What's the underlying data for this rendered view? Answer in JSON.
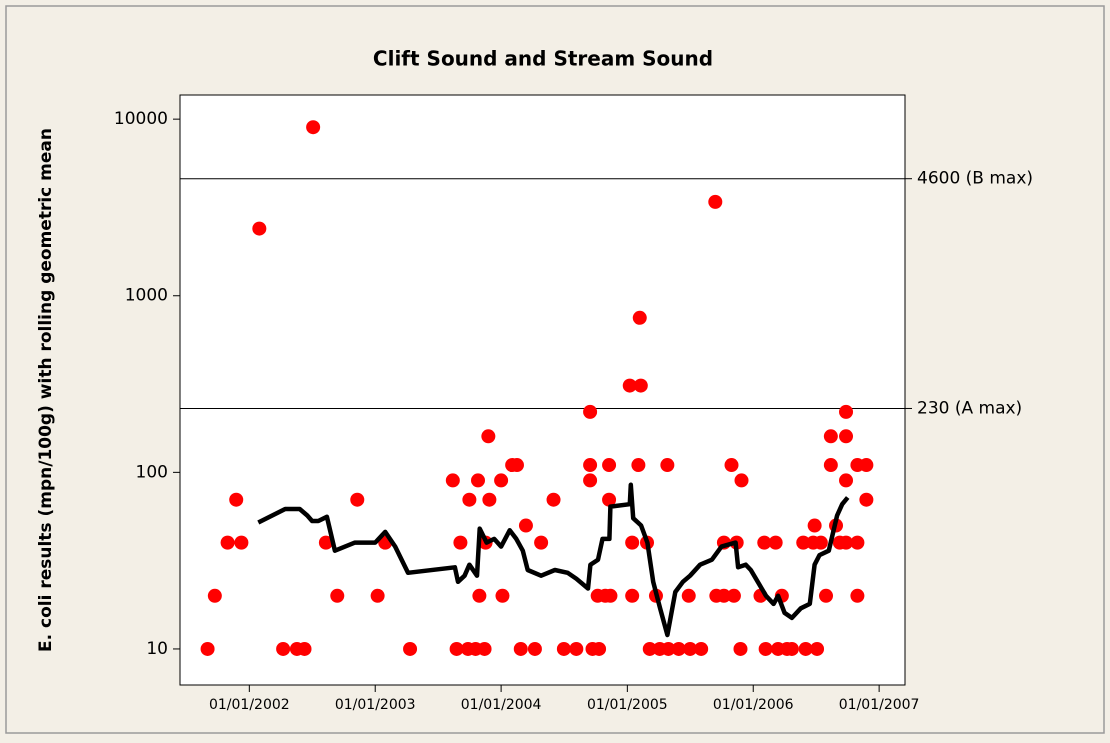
{
  "chart_data": {
    "type": "scatter",
    "title": "Clift Sound and Stream Sound",
    "ylabel": "E. coli results (mpn/100g) with rolling geometric mean",
    "log_scale": true,
    "ylim": [
      6.25,
      13700
    ],
    "yticks": [
      10,
      100,
      1000,
      10000
    ],
    "xlim": [
      "2001-06-14",
      "2007-03-17"
    ],
    "xticks": [
      {
        "value": "2002-01-01",
        "label": "01/01/2002"
      },
      {
        "value": "2003-01-01",
        "label": "01/01/2003"
      },
      {
        "value": "2004-01-01",
        "label": "01/01/2004"
      },
      {
        "value": "2005-01-01",
        "label": "01/01/2005"
      },
      {
        "value": "2006-01-01",
        "label": "01/01/2006"
      },
      {
        "value": "2007-01-01",
        "label": "01/01/2007"
      }
    ],
    "reference_lines": [
      {
        "value": 4600,
        "label": "4600 (B max)"
      },
      {
        "value": 230,
        "label": "230 (A max)"
      }
    ],
    "series": [
      {
        "type": "scatter",
        "color": "#ff0000",
        "x": [
          "2001-09-02",
          "2001-09-23",
          "2001-10-30",
          "2001-11-24",
          "2001-12-09",
          "2002-01-30",
          "2002-04-09",
          "2002-05-19",
          "2002-06-10",
          "2002-07-05",
          "2002-08-11",
          "2002-09-13",
          "2002-11-10",
          "2003-01-08",
          "2003-01-30",
          "2003-04-12",
          "2003-08-14",
          "2003-08-25",
          "2003-09-05",
          "2003-09-27",
          "2003-10-01",
          "2003-10-19",
          "2003-10-26",
          "2003-10-30",
          "2003-11-14",
          "2003-11-17",
          "2003-11-25",
          "2003-11-28",
          "2004-01-01",
          "2004-01-05",
          "2004-02-02",
          "2004-02-16",
          "2004-02-27",
          "2004-03-13",
          "2004-04-08",
          "2004-04-26",
          "2004-06-01",
          "2004-07-01",
          "2004-08-06",
          "2004-09-15",
          "2004-09-15",
          "2004-09-15",
          "2004-09-22",
          "2004-10-07",
          "2004-10-11",
          "2004-10-29",
          "2004-11-09",
          "2004-11-09",
          "2004-11-13",
          "2005-01-08",
          "2005-01-15",
          "2005-01-15",
          "2005-02-06",
          "2005-02-09",
          "2005-02-02",
          "2005-02-27",
          "2005-03-07",
          "2005-03-25",
          "2005-04-05",
          "2005-04-27",
          "2005-04-30",
          "2005-05-30",
          "2005-07-02",
          "2005-06-28",
          "2005-08-03",
          "2005-09-13",
          "2005-09-16",
          "2005-10-08",
          "2005-10-08",
          "2005-10-30",
          "2005-11-06",
          "2005-11-14",
          "2005-11-28",
          "2005-11-25",
          "2006-01-22",
          "2006-02-02",
          "2006-02-06",
          "2006-03-07",
          "2006-03-14",
          "2006-03-25",
          "2006-04-09",
          "2006-04-23",
          "2006-05-26",
          "2006-06-02",
          "2006-07-05",
          "2006-06-24",
          "2006-06-28",
          "2006-07-16",
          "2006-07-31",
          "2006-08-14",
          "2006-08-14",
          "2006-08-29",
          "2006-09-09",
          "2006-09-27",
          "2006-09-27",
          "2006-09-27",
          "2006-09-27",
          "2006-10-30",
          "2006-10-30",
          "2006-10-30",
          "2006-11-25",
          "2006-11-25"
        ],
        "values": [
          10,
          20,
          40,
          70,
          40,
          2400,
          10,
          10,
          10,
          9000,
          40,
          20,
          70,
          20,
          40,
          10,
          90,
          10,
          40,
          10,
          70,
          10,
          90,
          20,
          10,
          40,
          160,
          70,
          90,
          20,
          110,
          110,
          10,
          50,
          10,
          40,
          70,
          10,
          10,
          220,
          90,
          110,
          10,
          20,
          10,
          20,
          110,
          70,
          20,
          310,
          40,
          20,
          750,
          310,
          110,
          40,
          10,
          20,
          10,
          110,
          10,
          10,
          10,
          20,
          10,
          3400,
          20,
          20,
          40,
          110,
          20,
          40,
          90,
          10,
          20,
          40,
          10,
          40,
          10,
          20,
          10,
          10,
          40,
          10,
          10,
          40,
          50,
          40,
          20,
          110,
          160,
          50,
          40,
          160,
          220,
          90,
          40,
          40,
          110,
          20,
          110,
          70
        ]
      },
      {
        "type": "line",
        "color": "#000000",
        "x": [
          "2002-01-27",
          "2002-04-15",
          "2002-05-27",
          "2002-06-18",
          "2002-07-02",
          "2002-07-20",
          "2002-08-14",
          "2002-09-06",
          "2002-11-03",
          "2003-01-01",
          "2003-01-30",
          "2003-02-28",
          "2003-04-06",
          "2003-08-20",
          "2003-08-29",
          "2003-09-17",
          "2003-10-01",
          "2003-10-23",
          "2003-10-31",
          "2003-11-20",
          "2003-12-12",
          "2004-01-01",
          "2004-01-26",
          "2004-02-14",
          "2004-03-04",
          "2004-03-18",
          "2004-04-26",
          "2004-06-05",
          "2004-07-12",
          "2004-08-06",
          "2004-09-09",
          "2004-09-16",
          "2004-10-08",
          "2004-10-21",
          "2004-11-10",
          "2004-11-13",
          "2005-01-08",
          "2005-01-11",
          "2005-01-18",
          "2005-02-10",
          "2005-02-28",
          "2005-03-17",
          "2005-04-06",
          "2005-04-27",
          "2005-05-20",
          "2005-06-11",
          "2005-07-02",
          "2005-07-31",
          "2005-09-03",
          "2005-10-01",
          "2005-11-11",
          "2005-11-18",
          "2005-12-10",
          "2005-12-25",
          "2006-02-07",
          "2006-03-01",
          "2006-03-14",
          "2006-04-02",
          "2006-04-23",
          "2006-05-19",
          "2006-06-14",
          "2006-06-28",
          "2006-07-12",
          "2006-08-08",
          "2006-09-01",
          "2006-09-16",
          "2006-10-02"
        ],
        "values": [
          52,
          62,
          62,
          57,
          53,
          53,
          56,
          36,
          40,
          40,
          46,
          38,
          27,
          29,
          24,
          26,
          30,
          26,
          48,
          40,
          42,
          38,
          47,
          42,
          36,
          28,
          26,
          28,
          27,
          25,
          22,
          30,
          32,
          42,
          42,
          64,
          66,
          85,
          55,
          50,
          40,
          24,
          17,
          12,
          21,
          24,
          26,
          30,
          32,
          38,
          40,
          29,
          30,
          28,
          20,
          18,
          20,
          16,
          15,
          17,
          18,
          30,
          34,
          36,
          57,
          66,
          72
        ]
      }
    ]
  }
}
